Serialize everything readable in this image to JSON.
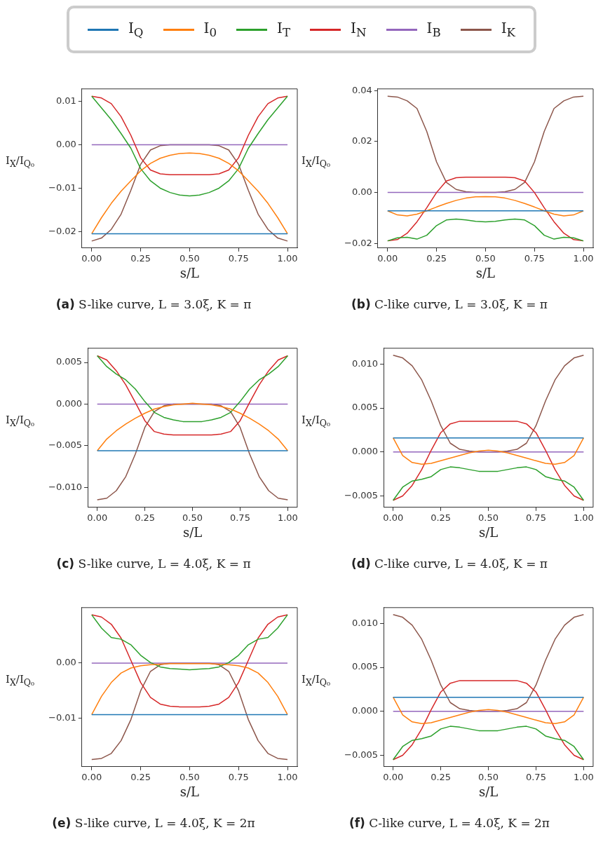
{
  "chart_data": [
    {
      "type": "line",
      "title": "(a) S-like curve, L = 3.0ξ, K = π",
      "xlabel": "s/L",
      "ylabel": "I$_{X}$/I$_{Q₀}$",
      "legend": "top",
      "marker": "none",
      "grid": false,
      "x": [
        0,
        0.05,
        0.1,
        0.15,
        0.2,
        0.25,
        0.3,
        0.35,
        0.4,
        0.45,
        0.5,
        0.55,
        0.6,
        0.65,
        0.7,
        0.75,
        0.8,
        0.85,
        0.9,
        0.95,
        1
      ],
      "xlim": [
        -0.05,
        1.05
      ],
      "xticks": [
        {
          "value": 0,
          "label": "0.00"
        },
        {
          "value": 0.25,
          "label": "0.25"
        },
        {
          "value": 0.5,
          "label": "0.50"
        },
        {
          "value": 0.75,
          "label": "0.75"
        },
        {
          "value": 1,
          "label": "1.00"
        }
      ],
      "ylim": [
        -0.0238,
        0.0129
      ],
      "yticks": [
        {
          "value": 0.01,
          "label": "0.01"
        },
        {
          "value": 0,
          "label": "0.00"
        },
        {
          "value": -0.01,
          "label": "−0.01"
        },
        {
          "value": -0.02,
          "label": "−0.02"
        }
      ],
      "series": [
        {
          "name": "I$_{Q}$",
          "color": "#1f77b4",
          "values": [
            -0.0205,
            -0.0205,
            -0.0205,
            -0.0205,
            -0.0205,
            -0.0205,
            -0.0205,
            -0.0205,
            -0.0205,
            -0.0205,
            -0.0205,
            -0.0205,
            -0.0205,
            -0.0205,
            -0.0205,
            -0.0205,
            -0.0205,
            -0.0205,
            -0.0205,
            -0.0205,
            -0.0205
          ]
        },
        {
          "name": "I$_{0}$",
          "color": "#ff7f0e",
          "values": [
            -0.0205,
            -0.0168,
            -0.0135,
            -0.0107,
            -0.0083,
            -0.006,
            -0.0043,
            -0.0031,
            -0.0024,
            -0.002,
            -0.0019,
            -0.002,
            -0.0024,
            -0.0031,
            -0.0043,
            -0.006,
            -0.0083,
            -0.0107,
            -0.0135,
            -0.0168,
            -0.0205
          ]
        },
        {
          "name": "I$_{T}$",
          "color": "#2ca02c",
          "values": [
            0.0112,
            0.0085,
            0.0058,
            0.0026,
            -0.0008,
            -0.0055,
            -0.0083,
            -0.01,
            -0.011,
            -0.0116,
            -0.0118,
            -0.0116,
            -0.011,
            -0.01,
            -0.0083,
            -0.0055,
            -0.0008,
            0.0026,
            0.0058,
            0.0085,
            0.0112
          ]
        },
        {
          "name": "I$_{N}$",
          "color": "#d62728",
          "values": [
            0.0112,
            0.0108,
            0.0095,
            0.0065,
            0.0022,
            -0.003,
            -0.0058,
            -0.0067,
            -0.0069,
            -0.0069,
            -0.0069,
            -0.0069,
            -0.0069,
            -0.0067,
            -0.0058,
            -0.003,
            0.0022,
            0.0065,
            0.0095,
            0.0108,
            0.0112
          ]
        },
        {
          "name": "I$_{B}$",
          "color": "#9467bd",
          "values": [
            0,
            0,
            0,
            0,
            0,
            0,
            0,
            0,
            0,
            0,
            0,
            0,
            0,
            0,
            0,
            0,
            0,
            0,
            0,
            0,
            0
          ]
        },
        {
          "name": "I$_{K}$",
          "color": "#8c564b",
          "values": [
            -0.0222,
            -0.0215,
            -0.0195,
            -0.016,
            -0.0105,
            -0.0045,
            -0.0012,
            -0.0002,
            0,
            0,
            0,
            0,
            0,
            -0.0002,
            -0.0012,
            -0.0045,
            -0.0105,
            -0.016,
            -0.0195,
            -0.0215,
            -0.0222
          ]
        }
      ]
    },
    {
      "type": "line",
      "title": "(b) C-like curve, L = 3.0ξ, K = π",
      "xlabel": "s/L",
      "ylabel": "I$_{X}$/I$_{Q₀}$",
      "marker": "none",
      "grid": false,
      "x": [
        0,
        0.05,
        0.1,
        0.15,
        0.2,
        0.25,
        0.3,
        0.35,
        0.4,
        0.45,
        0.5,
        0.55,
        0.6,
        0.65,
        0.7,
        0.75,
        0.8,
        0.85,
        0.9,
        0.95,
        1
      ],
      "xlim": [
        -0.05,
        1.05
      ],
      "xticks": [
        {
          "value": 0,
          "label": "0.00"
        },
        {
          "value": 0.25,
          "label": "0.25"
        },
        {
          "value": 0.5,
          "label": "0.50"
        },
        {
          "value": 0.75,
          "label": "0.75"
        },
        {
          "value": 1,
          "label": "1.00"
        }
      ],
      "ylim": [
        -0.0218,
        0.0407
      ],
      "yticks": [
        {
          "value": 0.04,
          "label": "0.04"
        },
        {
          "value": 0.02,
          "label": "0.02"
        },
        {
          "value": 0,
          "label": "0.00"
        },
        {
          "value": -0.02,
          "label": "−0.02"
        }
      ],
      "series": [
        {
          "color": "#1f77b4",
          "values": [
            -0.0072,
            -0.0072,
            -0.0072,
            -0.0072,
            -0.0072,
            -0.0072,
            -0.0072,
            -0.0072,
            -0.0072,
            -0.0072,
            -0.0072,
            -0.0072,
            -0.0072,
            -0.0072,
            -0.0072,
            -0.0072,
            -0.0072,
            -0.0072,
            -0.0072,
            -0.0072,
            -0.0072
          ]
        },
        {
          "color": "#ff7f0e",
          "values": [
            -0.0072,
            -0.0088,
            -0.0092,
            -0.0085,
            -0.0072,
            -0.0057,
            -0.0043,
            -0.0031,
            -0.0022,
            -0.0017,
            -0.0016,
            -0.0017,
            -0.0022,
            -0.0031,
            -0.0043,
            -0.0057,
            -0.0072,
            -0.0085,
            -0.0092,
            -0.0088,
            -0.0072
          ]
        },
        {
          "color": "#2ca02c",
          "values": [
            -0.019,
            -0.0178,
            -0.0176,
            -0.0183,
            -0.0168,
            -0.013,
            -0.0108,
            -0.0104,
            -0.0108,
            -0.0113,
            -0.0115,
            -0.0113,
            -0.0108,
            -0.0104,
            -0.0108,
            -0.013,
            -0.0168,
            -0.0183,
            -0.0176,
            -0.0178,
            -0.019
          ]
        },
        {
          "color": "#d62728",
          "values": [
            -0.019,
            -0.0185,
            -0.016,
            -0.0115,
            -0.006,
            0,
            0.0045,
            0.0058,
            0.006,
            0.006,
            0.006,
            0.006,
            0.006,
            0.0058,
            0.0045,
            0,
            -0.006,
            -0.0115,
            -0.016,
            -0.0185,
            -0.019
          ]
        },
        {
          "color": "#9467bd",
          "values": [
            0,
            0,
            0,
            0,
            0,
            0,
            0,
            0,
            0,
            0,
            0,
            0,
            0,
            0,
            0,
            0,
            0,
            0,
            0,
            0,
            0
          ]
        },
        {
          "color": "#8c564b",
          "values": [
            0.0378,
            0.0375,
            0.036,
            0.033,
            0.024,
            0.012,
            0.004,
            0.0012,
            0.0003,
            0,
            0,
            0,
            0.0003,
            0.0012,
            0.004,
            0.012,
            0.024,
            0.033,
            0.036,
            0.0375,
            0.0378
          ]
        }
      ]
    },
    {
      "type": "line",
      "title": "(c) S-like curve, L = 4.0ξ, K = π",
      "xlabel": "s/L",
      "ylabel": "I$_{X}$/I$_{Q₀}$",
      "marker": "none",
      "grid": false,
      "x": [
        0,
        0.05,
        0.1,
        0.15,
        0.2,
        0.25,
        0.3,
        0.35,
        0.4,
        0.45,
        0.5,
        0.55,
        0.6,
        0.65,
        0.7,
        0.75,
        0.8,
        0.85,
        0.9,
        0.95,
        1
      ],
      "xlim": [
        -0.05,
        1.05
      ],
      "xticks": [
        {
          "value": 0,
          "label": "0.00"
        },
        {
          "value": 0.25,
          "label": "0.25"
        },
        {
          "value": 0.5,
          "label": "0.50"
        },
        {
          "value": 0.75,
          "label": "0.75"
        },
        {
          "value": 1,
          "label": "1.00"
        }
      ],
      "ylim": [
        -0.0124,
        0.0067
      ],
      "yticks": [
        {
          "value": 0.005,
          "label": "0.005"
        },
        {
          "value": 0,
          "label": "0.000"
        },
        {
          "value": -0.005,
          "label": "−0.005"
        },
        {
          "value": -0.01,
          "label": "−0.010"
        }
      ],
      "series": [
        {
          "color": "#1f77b4",
          "values": [
            -0.0056,
            -0.0056,
            -0.0056,
            -0.0056,
            -0.0056,
            -0.0056,
            -0.0056,
            -0.0056,
            -0.0056,
            -0.0056,
            -0.0056,
            -0.0056,
            -0.0056,
            -0.0056,
            -0.0056,
            -0.0056,
            -0.0056,
            -0.0056,
            -0.0056,
            -0.0056,
            -0.0056
          ]
        },
        {
          "color": "#ff7f0e",
          "values": [
            -0.0056,
            -0.0042,
            -0.0032,
            -0.0024,
            -0.0017,
            -0.0011,
            -0.0006,
            -0.0003,
            -0.0001,
            0,
            0.0001,
            0,
            -0.0001,
            -0.0003,
            -0.0006,
            -0.0011,
            -0.0017,
            -0.0024,
            -0.0032,
            -0.0042,
            -0.0056
          ]
        },
        {
          "color": "#2ca02c",
          "values": [
            0.0058,
            0.0045,
            0.0036,
            0.0029,
            0.0018,
            0.0003,
            -0.001,
            -0.0016,
            -0.0019,
            -0.0021,
            -0.0021,
            -0.0021,
            -0.0019,
            -0.0016,
            -0.001,
            0.0003,
            0.0018,
            0.0029,
            0.0036,
            0.0045,
            0.0058
          ]
        },
        {
          "color": "#d62728",
          "values": [
            0.0058,
            0.0053,
            0.004,
            0.0023,
            0.0002,
            -0.002,
            -0.0033,
            -0.0036,
            -0.0037,
            -0.0037,
            -0.0037,
            -0.0037,
            -0.0037,
            -0.0036,
            -0.0033,
            -0.002,
            0.0002,
            0.0023,
            0.004,
            0.0053,
            0.0058
          ]
        },
        {
          "color": "#9467bd",
          "values": [
            0,
            0,
            0,
            0,
            0,
            0,
            0,
            0,
            0,
            0,
            0,
            0,
            0,
            0,
            0,
            0,
            0,
            0,
            0,
            0,
            0
          ]
        },
        {
          "color": "#8c564b",
          "values": [
            -0.0115,
            -0.0113,
            -0.0104,
            -0.0087,
            -0.006,
            -0.0028,
            -0.0009,
            -0.0002,
            0,
            0,
            0,
            0,
            0,
            -0.0002,
            -0.0009,
            -0.0028,
            -0.006,
            -0.0087,
            -0.0104,
            -0.0113,
            -0.0115
          ]
        }
      ]
    },
    {
      "type": "line",
      "title": "(d) C-like curve, L = 4.0ξ, K = π",
      "xlabel": "s/L",
      "ylabel": "I$_{X}$/I$_{Q₀}$",
      "marker": "none",
      "grid": false,
      "x": [
        0,
        0.05,
        0.1,
        0.15,
        0.2,
        0.25,
        0.3,
        0.35,
        0.4,
        0.45,
        0.5,
        0.55,
        0.6,
        0.65,
        0.7,
        0.75,
        0.8,
        0.85,
        0.9,
        0.95,
        1
      ],
      "xlim": [
        -0.05,
        1.05
      ],
      "xticks": [
        {
          "value": 0,
          "label": "0.00"
        },
        {
          "value": 0.25,
          "label": "0.25"
        },
        {
          "value": 0.5,
          "label": "0.50"
        },
        {
          "value": 0.75,
          "label": "0.75"
        },
        {
          "value": 1,
          "label": "1.00"
        }
      ],
      "ylim": [
        -0.0063,
        0.0118
      ],
      "yticks": [
        {
          "value": 0.01,
          "label": "0.010"
        },
        {
          "value": 0.005,
          "label": "0.005"
        },
        {
          "value": 0,
          "label": "0.000"
        },
        {
          "value": -0.005,
          "label": "−0.005"
        }
      ],
      "series": [
        {
          "color": "#1f77b4",
          "values": [
            0.0016,
            0.0016,
            0.0016,
            0.0016,
            0.0016,
            0.0016,
            0.0016,
            0.0016,
            0.0016,
            0.0016,
            0.0016,
            0.0016,
            0.0016,
            0.0016,
            0.0016,
            0.0016,
            0.0016,
            0.0016,
            0.0016,
            0.0016,
            0.0016
          ]
        },
        {
          "color": "#ff7f0e",
          "values": [
            0.0016,
            -0.0004,
            -0.0012,
            -0.0014,
            -0.0013,
            -0.001,
            -0.0007,
            -0.0004,
            -0.0001,
            0.0001,
            0.0002,
            0.0001,
            -0.0001,
            -0.0004,
            -0.0007,
            -0.001,
            -0.0013,
            -0.0014,
            -0.0012,
            -0.0004,
            0.0016
          ]
        },
        {
          "color": "#2ca02c",
          "values": [
            -0.0055,
            -0.004,
            -0.0033,
            -0.0031,
            -0.0028,
            -0.002,
            -0.0017,
            -0.0018,
            -0.002,
            -0.0022,
            -0.0022,
            -0.0022,
            -0.002,
            -0.0018,
            -0.0017,
            -0.002,
            -0.0028,
            -0.0031,
            -0.0033,
            -0.004,
            -0.0055
          ]
        },
        {
          "color": "#d62728",
          "values": [
            -0.0055,
            -0.005,
            -0.0038,
            -0.002,
            0.0002,
            0.0022,
            0.0032,
            0.0035,
            0.0035,
            0.0035,
            0.0035,
            0.0035,
            0.0035,
            0.0035,
            0.0032,
            0.0022,
            0.0002,
            -0.002,
            -0.0038,
            -0.005,
            -0.0055
          ]
        },
        {
          "color": "#9467bd",
          "values": [
            0,
            0,
            0,
            0,
            0,
            0,
            0,
            0,
            0,
            0,
            0,
            0,
            0,
            0,
            0,
            0,
            0,
            0,
            0,
            0,
            0
          ]
        },
        {
          "color": "#8c564b",
          "values": [
            0.011,
            0.0107,
            0.0098,
            0.0082,
            0.0058,
            0.003,
            0.001,
            0.0003,
            0.0001,
            0,
            0,
            0,
            0.0001,
            0.0003,
            0.001,
            0.003,
            0.0058,
            0.0082,
            0.0098,
            0.0107,
            0.011
          ]
        }
      ]
    },
    {
      "type": "line",
      "title": "(e) S-like curve, L = 4.0ξ, K = 2π",
      "xlabel": "s/L",
      "ylabel": "I$_{X}$/I$_{Q₀}$",
      "marker": "none",
      "grid": false,
      "x": [
        0,
        0.05,
        0.1,
        0.15,
        0.2,
        0.25,
        0.3,
        0.35,
        0.4,
        0.45,
        0.5,
        0.55,
        0.6,
        0.65,
        0.7,
        0.75,
        0.8,
        0.85,
        0.9,
        0.95,
        1
      ],
      "xlim": [
        -0.05,
        1.05
      ],
      "xticks": [
        {
          "value": 0,
          "label": "0.00"
        },
        {
          "value": 0.25,
          "label": "0.25"
        },
        {
          "value": 0.5,
          "label": "0.50"
        },
        {
          "value": 0.75,
          "label": "0.75"
        },
        {
          "value": 1,
          "label": "1.00"
        }
      ],
      "ylim": [
        -0.0187,
        0.01
      ],
      "yticks": [
        {
          "value": 0,
          "label": "0.00"
        },
        {
          "value": -0.01,
          "label": "−0.01"
        }
      ],
      "series": [
        {
          "color": "#1f77b4",
          "values": [
            -0.0093,
            -0.0093,
            -0.0093,
            -0.0093,
            -0.0093,
            -0.0093,
            -0.0093,
            -0.0093,
            -0.0093,
            -0.0093,
            -0.0093,
            -0.0093,
            -0.0093,
            -0.0093,
            -0.0093,
            -0.0093,
            -0.0093,
            -0.0093,
            -0.0093,
            -0.0093,
            -0.0093
          ]
        },
        {
          "color": "#ff7f0e",
          "values": [
            -0.0093,
            -0.006,
            -0.0035,
            -0.0018,
            -0.0009,
            -0.0005,
            -0.0003,
            -0.0002,
            -0.0001,
            -0.0001,
            -0.0001,
            -0.0001,
            -0.0001,
            -0.0002,
            -0.0003,
            -0.0005,
            -0.0009,
            -0.0018,
            -0.0035,
            -0.006,
            -0.0093
          ]
        },
        {
          "color": "#2ca02c",
          "values": [
            0.0087,
            0.0063,
            0.0046,
            0.0043,
            0.0033,
            0.0014,
            0.0001,
            -0.0007,
            -0.001,
            -0.0011,
            -0.0012,
            -0.0011,
            -0.001,
            -0.0007,
            0.0001,
            0.0014,
            0.0033,
            0.0043,
            0.0046,
            0.0063,
            0.0087
          ]
        },
        {
          "color": "#d62728",
          "values": [
            0.0087,
            0.0083,
            0.007,
            0.0045,
            0.0005,
            -0.0035,
            -0.0062,
            -0.0074,
            -0.0078,
            -0.0079,
            -0.0079,
            -0.0079,
            -0.0078,
            -0.0074,
            -0.0062,
            -0.0035,
            0.0005,
            0.0045,
            0.007,
            0.0083,
            0.0087
          ]
        },
        {
          "color": "#9467bd",
          "values": [
            0,
            0,
            0,
            0,
            0,
            0,
            0,
            0,
            0,
            0,
            0,
            0,
            0,
            0,
            0,
            0,
            0,
            0,
            0,
            0,
            0
          ]
        },
        {
          "color": "#8c564b",
          "values": [
            -0.0174,
            -0.0172,
            -0.0163,
            -0.014,
            -0.0102,
            -0.005,
            -0.0015,
            -0.0003,
            0,
            0,
            0,
            0,
            0,
            -0.0003,
            -0.0015,
            -0.005,
            -0.0102,
            -0.014,
            -0.0163,
            -0.0172,
            -0.0174
          ]
        }
      ]
    },
    {
      "type": "line",
      "title": "(f) C-like curve, L = 4.0ξ, K = 2π",
      "xlabel": "s/L",
      "ylabel": "I$_{X}$/I$_{Q₀}$",
      "marker": "none",
      "grid": false,
      "x": [
        0,
        0.05,
        0.1,
        0.15,
        0.2,
        0.25,
        0.3,
        0.35,
        0.4,
        0.45,
        0.5,
        0.55,
        0.6,
        0.65,
        0.7,
        0.75,
        0.8,
        0.85,
        0.9,
        0.95,
        1
      ],
      "xlim": [
        -0.05,
        1.05
      ],
      "xticks": [
        {
          "value": 0,
          "label": "0.00"
        },
        {
          "value": 0.25,
          "label": "0.25"
        },
        {
          "value": 0.5,
          "label": "0.50"
        },
        {
          "value": 0.75,
          "label": "0.75"
        },
        {
          "value": 1,
          "label": "1.00"
        }
      ],
      "ylim": [
        -0.0063,
        0.0118
      ],
      "yticks": [
        {
          "value": 0.01,
          "label": "0.010"
        },
        {
          "value": 0.005,
          "label": "0.005"
        },
        {
          "value": 0,
          "label": "0.000"
        },
        {
          "value": -0.005,
          "label": "−0.005"
        }
      ],
      "series": [
        {
          "color": "#1f77b4",
          "values": [
            0.0016,
            0.0016,
            0.0016,
            0.0016,
            0.0016,
            0.0016,
            0.0016,
            0.0016,
            0.0016,
            0.0016,
            0.0016,
            0.0016,
            0.0016,
            0.0016,
            0.0016,
            0.0016,
            0.0016,
            0.0016,
            0.0016,
            0.0016,
            0.0016
          ]
        },
        {
          "color": "#ff7f0e",
          "values": [
            0.0016,
            -0.0004,
            -0.0012,
            -0.0014,
            -0.0013,
            -0.001,
            -0.0007,
            -0.0004,
            -0.0001,
            0.0001,
            0.0002,
            0.0001,
            -0.0001,
            -0.0004,
            -0.0007,
            -0.001,
            -0.0013,
            -0.0014,
            -0.0012,
            -0.0004,
            0.0016
          ]
        },
        {
          "color": "#2ca02c",
          "values": [
            -0.0055,
            -0.004,
            -0.0033,
            -0.0031,
            -0.0028,
            -0.002,
            -0.0017,
            -0.0018,
            -0.002,
            -0.0022,
            -0.0022,
            -0.0022,
            -0.002,
            -0.0018,
            -0.0017,
            -0.002,
            -0.0028,
            -0.0031,
            -0.0033,
            -0.004,
            -0.0055
          ]
        },
        {
          "color": "#d62728",
          "values": [
            -0.0055,
            -0.005,
            -0.0038,
            -0.002,
            0.0002,
            0.0022,
            0.0032,
            0.0035,
            0.0035,
            0.0035,
            0.0035,
            0.0035,
            0.0035,
            0.0035,
            0.0032,
            0.0022,
            0.0002,
            -0.002,
            -0.0038,
            -0.005,
            -0.0055
          ]
        },
        {
          "color": "#9467bd",
          "values": [
            0,
            0,
            0,
            0,
            0,
            0,
            0,
            0,
            0,
            0,
            0,
            0,
            0,
            0,
            0,
            0,
            0,
            0,
            0,
            0,
            0
          ]
        },
        {
          "color": "#8c564b",
          "values": [
            0.011,
            0.0107,
            0.0098,
            0.0082,
            0.0058,
            0.003,
            0.001,
            0.0003,
            0.0001,
            0,
            0,
            0,
            0.0001,
            0.0003,
            0.001,
            0.003,
            0.0058,
            0.0082,
            0.0098,
            0.0107,
            0.011
          ]
        }
      ]
    }
  ]
}
